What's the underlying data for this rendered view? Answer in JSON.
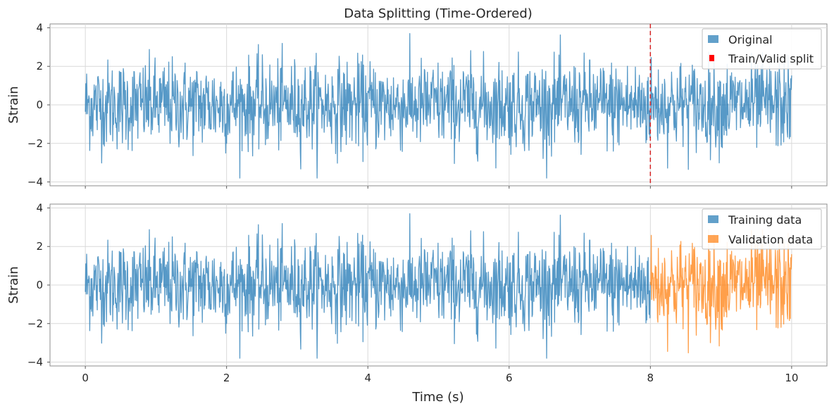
{
  "chart_data": [
    {
      "type": "line",
      "title": "Data Splitting (Time-Ordered)",
      "xlabel": "",
      "ylabel": "Strain",
      "xlim": [
        -0.5,
        10.5
      ],
      "ylim": [
        -4.2,
        4.2
      ],
      "x_ticks": [
        0,
        2,
        4,
        6,
        8,
        10
      ],
      "y_ticks": [
        -4,
        -2,
        0,
        2,
        4
      ],
      "y_tick_labels": [
        "−4",
        "−2",
        "0",
        "2",
        "4"
      ],
      "grid": true,
      "legend_position": "top-right",
      "series": [
        {
          "name": "Original",
          "color": "#1f77b4",
          "x_range": [
            0,
            10
          ],
          "y_envelope": [
            -3.8,
            3.7
          ]
        }
      ],
      "annotations": [
        {
          "name": "Train/Valid split",
          "type": "vertical-dashed-line",
          "x": 8,
          "color": "#d62728"
        }
      ]
    },
    {
      "type": "line",
      "title": "",
      "xlabel": "Time (s)",
      "ylabel": "Strain",
      "xlim": [
        -0.5,
        10.5
      ],
      "ylim": [
        -4.2,
        4.2
      ],
      "x_ticks": [
        0,
        2,
        4,
        6,
        8,
        10
      ],
      "x_tick_labels": [
        "0",
        "2",
        "4",
        "6",
        "8",
        "10"
      ],
      "y_ticks": [
        -4,
        -2,
        0,
        2,
        4
      ],
      "y_tick_labels": [
        "−4",
        "−2",
        "0",
        "2",
        "4"
      ],
      "grid": true,
      "legend_position": "top-right",
      "series": [
        {
          "name": "Training data",
          "color": "#1f77b4",
          "x_range": [
            0,
            8
          ],
          "y_envelope": [
            -3.8,
            3.7
          ]
        },
        {
          "name": "Validation data",
          "color": "#ff7f0e",
          "x_range": [
            8,
            10
          ],
          "y_envelope": [
            -3.8,
            3.8
          ]
        }
      ]
    }
  ]
}
